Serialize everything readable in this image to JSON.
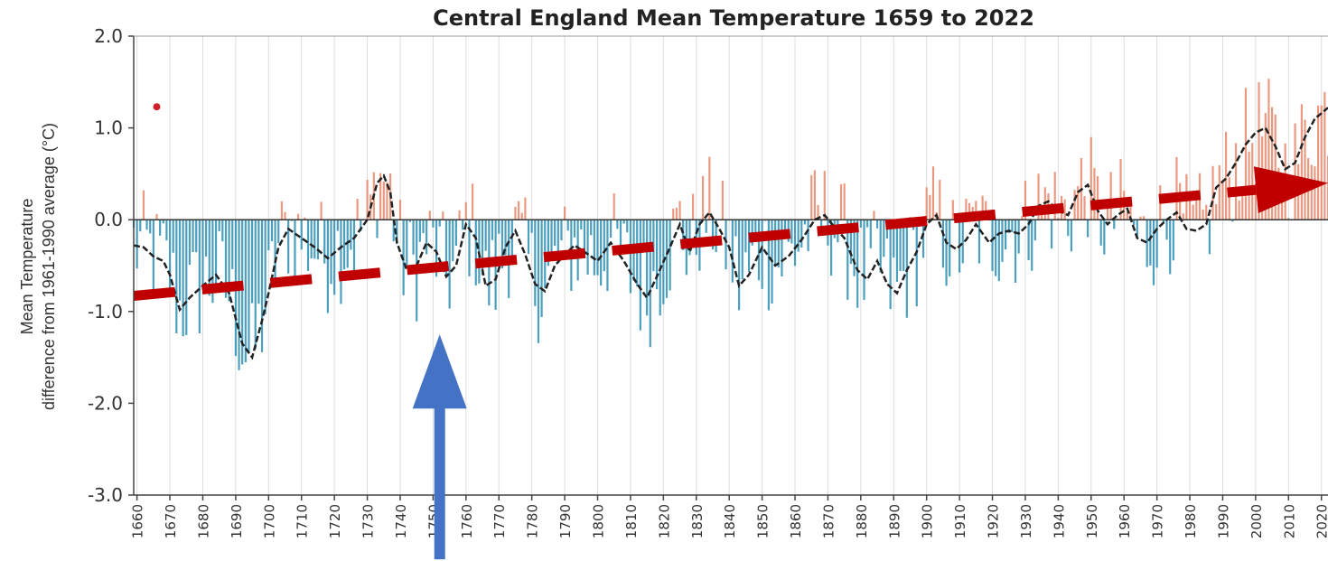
{
  "chart_data": {
    "type": "bar",
    "title": "Central England Mean Temperature 1659 to 2022",
    "ylabel_line1": "Mean Temperature",
    "ylabel_line2": "difference from 1961-1990 average (°C)",
    "xlim": [
      1659,
      2022
    ],
    "ylim": [
      -3.0,
      2.0
    ],
    "yticks": [
      2.0,
      1.0,
      0.0,
      -1.0,
      -2.0,
      -3.0
    ],
    "ytick_labels": [
      "2.0",
      "1.0",
      "0.0",
      "-1.0",
      "-2.0",
      "-3.0"
    ],
    "xticks": [
      1660,
      1670,
      1680,
      1690,
      1700,
      1710,
      1720,
      1730,
      1740,
      1750,
      1760,
      1770,
      1780,
      1790,
      1800,
      1810,
      1820,
      1830,
      1840,
      1850,
      1860,
      1870,
      1880,
      1890,
      1900,
      1910,
      1920,
      1930,
      1940,
      1950,
      1960,
      1970,
      1980,
      1990,
      2000,
      2010,
      2020
    ],
    "xtick_labels": [
      "1660",
      "1670",
      "1680",
      "1690",
      "1700",
      "1710",
      "1720",
      "1730",
      "1740",
      "1750",
      "1760",
      "1770",
      "1780",
      "1790",
      "1800",
      "1810",
      "1820",
      "1830",
      "1840",
      "1850",
      "1860",
      "1870",
      "1880",
      "1890",
      "1900",
      "1910",
      "1920",
      "1930",
      "1940",
      "1950",
      "1960",
      "1970",
      "1980",
      "1990",
      "2000",
      "2010",
      "2020"
    ],
    "grid": "vertical",
    "colors": {
      "warm": "#e8866a",
      "cold": "#2a8db3",
      "smooth": "#222222",
      "trend": "#c00000",
      "arrow": "#4472c4",
      "marker": "#d0202a"
    },
    "marker_point": {
      "x": 1666,
      "y": 1.23
    },
    "smooth_series": {
      "x": [
        1659,
        1662,
        1665,
        1668,
        1670,
        1673,
        1676,
        1680,
        1684,
        1688,
        1692,
        1695,
        1698,
        1700,
        1703,
        1706,
        1710,
        1714,
        1718,
        1722,
        1726,
        1730,
        1733,
        1735,
        1737,
        1739,
        1742,
        1745,
        1748,
        1751,
        1754,
        1757,
        1760,
        1763,
        1766,
        1769,
        1772,
        1775,
        1778,
        1781,
        1784,
        1787,
        1790,
        1793,
        1796,
        1800,
        1804,
        1808,
        1812,
        1815,
        1818,
        1822,
        1825,
        1828,
        1831,
        1834,
        1837,
        1840,
        1843,
        1846,
        1850,
        1854,
        1858,
        1862,
        1866,
        1869,
        1872,
        1875,
        1879,
        1882,
        1885,
        1888,
        1891,
        1894,
        1897,
        1900,
        1903,
        1906,
        1909,
        1912,
        1915,
        1919,
        1922,
        1925,
        1928,
        1931,
        1934,
        1937,
        1940,
        1943,
        1946,
        1949,
        1952,
        1955,
        1958,
        1961,
        1964,
        1967,
        1970,
        1973,
        1976,
        1979,
        1982,
        1985,
        1988,
        1991,
        1994,
        1997,
        2000,
        2003,
        2006,
        2009,
        2012,
        2015,
        2018,
        2022
      ],
      "y": [
        -0.28,
        -0.3,
        -0.4,
        -0.45,
        -0.6,
        -0.98,
        -0.85,
        -0.72,
        -0.6,
        -0.8,
        -1.35,
        -1.5,
        -1.1,
        -0.8,
        -0.3,
        -0.1,
        -0.2,
        -0.3,
        -0.42,
        -0.3,
        -0.2,
        0.0,
        0.4,
        0.48,
        0.3,
        -0.25,
        -0.55,
        -0.5,
        -0.25,
        -0.35,
        -0.62,
        -0.5,
        -0.05,
        -0.2,
        -0.72,
        -0.65,
        -0.3,
        -0.12,
        -0.38,
        -0.7,
        -0.78,
        -0.5,
        -0.38,
        -0.28,
        -0.35,
        -0.45,
        -0.25,
        -0.45,
        -0.7,
        -0.85,
        -0.62,
        -0.3,
        -0.05,
        -0.35,
        -0.05,
        0.08,
        -0.1,
        -0.3,
        -0.72,
        -0.6,
        -0.3,
        -0.5,
        -0.4,
        -0.22,
        0.0,
        0.05,
        -0.08,
        -0.2,
        -0.55,
        -0.65,
        -0.45,
        -0.7,
        -0.8,
        -0.55,
        -0.35,
        -0.05,
        0.05,
        -0.25,
        -0.32,
        -0.22,
        -0.05,
        -0.25,
        -0.15,
        -0.12,
        -0.15,
        -0.05,
        0.15,
        0.2,
        0.1,
        0.05,
        0.3,
        0.38,
        0.1,
        -0.05,
        0.05,
        0.12,
        -0.2,
        -0.25,
        -0.1,
        0.0,
        0.08,
        -0.1,
        -0.12,
        -0.05,
        0.35,
        0.45,
        0.62,
        0.82,
        0.95,
        1.0,
        0.8,
        0.55,
        0.62,
        0.9,
        1.1,
        1.22
      ]
    },
    "trend_line": {
      "x": [
        1659,
        2022
      ],
      "y": [
        -0.83,
        0.4
      ]
    },
    "annotation_arrow": {
      "x": 1752,
      "y_base": -3.7,
      "y_tip": -1.25
    }
  }
}
